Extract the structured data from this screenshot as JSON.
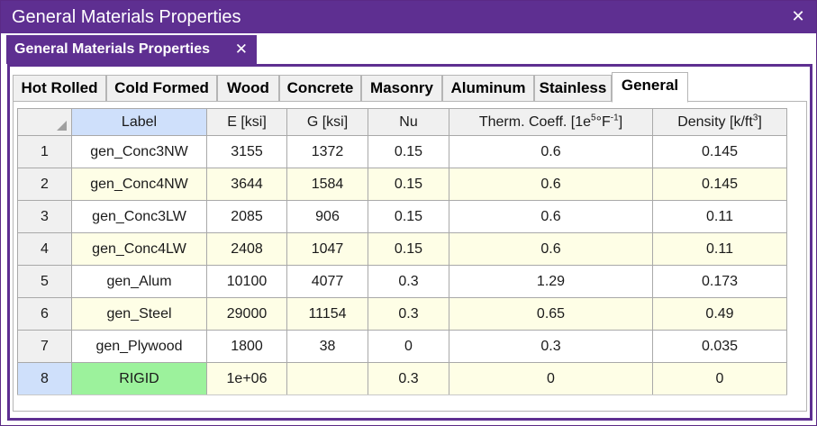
{
  "window": {
    "title": "General Materials Properties",
    "close_glyph": "✕"
  },
  "doc_tab": {
    "label": "General Materials Properties",
    "close_glyph": "✕"
  },
  "tabs": [
    {
      "label": "Hot Rolled"
    },
    {
      "label": "Cold Formed"
    },
    {
      "label": "Wood"
    },
    {
      "label": "Concrete"
    },
    {
      "label": "Masonry"
    },
    {
      "label": "Aluminum"
    },
    {
      "label": "Stainless"
    },
    {
      "label": "General"
    }
  ],
  "active_tab": "General",
  "table": {
    "headers": {
      "label": "Label",
      "e": "E [ksi]",
      "g": "G [ksi]",
      "nu": "Nu",
      "therm_prefix": "Therm. Coeff. [1e",
      "therm_sup1": "5",
      "therm_mid": "°F",
      "therm_sup2": "-1",
      "therm_suffix": "]",
      "density_prefix": "Density [k/ft",
      "density_sup": "3",
      "density_suffix": "]"
    },
    "rows": [
      {
        "num": "1",
        "label": "gen_Conc3NW",
        "e": "3155",
        "g": "1372",
        "nu": "0.15",
        "therm": "0.6",
        "density": "0.145"
      },
      {
        "num": "2",
        "label": "gen_Conc4NW",
        "e": "3644",
        "g": "1584",
        "nu": "0.15",
        "therm": "0.6",
        "density": "0.145"
      },
      {
        "num": "3",
        "label": "gen_Conc3LW",
        "e": "2085",
        "g": "906",
        "nu": "0.15",
        "therm": "0.6",
        "density": "0.11"
      },
      {
        "num": "4",
        "label": "gen_Conc4LW",
        "e": "2408",
        "g": "1047",
        "nu": "0.15",
        "therm": "0.6",
        "density": "0.11"
      },
      {
        "num": "5",
        "label": "gen_Alum",
        "e": "10100",
        "g": "4077",
        "nu": "0.3",
        "therm": "1.29",
        "density": "0.173"
      },
      {
        "num": "6",
        "label": "gen_Steel",
        "e": "29000",
        "g": "11154",
        "nu": "0.3",
        "therm": "0.65",
        "density": "0.49"
      },
      {
        "num": "7",
        "label": "gen_Plywood",
        "e": "1800",
        "g": "38",
        "nu": "0",
        "therm": "0.3",
        "density": "0.035"
      },
      {
        "num": "8",
        "label": "RIGID",
        "e": "1e+06",
        "g": "",
        "nu": "0.3",
        "therm": "0",
        "density": "0"
      }
    ]
  },
  "colors": {
    "title_bar": "#5e2f91",
    "selected_header": "#cfe0fb",
    "alt_row": "#fefee6",
    "rigid_cell": "#9cf29c"
  }
}
